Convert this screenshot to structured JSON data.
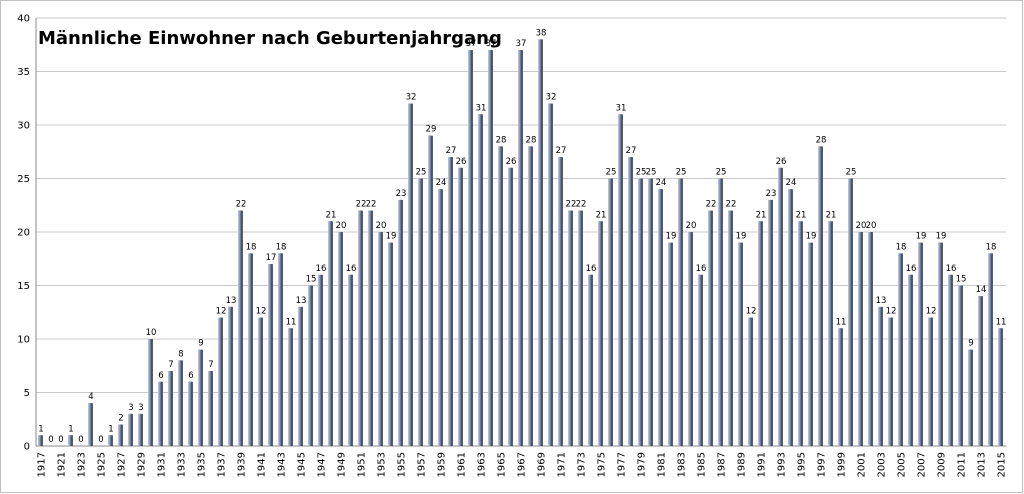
{
  "chart_data": {
    "type": "bar",
    "title": "Männliche Einwohner nach Geburtenjahrgang",
    "categories": [
      "1917",
      null,
      "1921",
      null,
      "1923",
      null,
      "1925",
      null,
      "1927",
      null,
      "1929",
      null,
      "1931",
      null,
      "1933",
      null,
      "1935",
      null,
      "1937",
      null,
      "1939",
      null,
      "1941",
      null,
      "1943",
      null,
      "1945",
      null,
      "1947",
      null,
      "1949",
      null,
      "1951",
      null,
      "1953",
      null,
      "1955",
      null,
      "1957",
      null,
      "1959",
      null,
      "1961",
      null,
      "1963",
      null,
      "1965",
      null,
      "1967",
      null,
      "1969",
      null,
      "1971",
      null,
      "1973",
      null,
      "1975",
      null,
      "1977",
      null,
      "1979",
      null,
      "1981",
      null,
      "1983",
      null,
      "1985",
      null,
      "1987",
      null,
      "1989",
      null,
      "1991",
      null,
      "1993",
      null,
      "1995",
      null,
      "1997",
      null,
      "1999",
      null,
      "2001",
      null,
      "2003",
      null,
      "2005",
      null,
      "2007",
      null,
      "2009",
      null,
      "2011",
      null,
      "2013",
      null,
      "2015"
    ],
    "values": [
      1,
      0,
      0,
      1,
      0,
      4,
      0,
      1,
      2,
      3,
      3,
      10,
      6,
      7,
      8,
      6,
      9,
      7,
      12,
      13,
      22,
      18,
      12,
      17,
      18,
      11,
      13,
      15,
      16,
      21,
      20,
      16,
      22,
      22,
      20,
      19,
      23,
      32,
      25,
      29,
      24,
      27,
      26,
      37,
      31,
      37,
      28,
      26,
      37,
      28,
      38,
      32,
      27,
      22,
      22,
      16,
      21,
      25,
      31,
      27,
      25,
      25,
      24,
      19,
      25,
      20,
      16,
      22,
      25,
      22,
      19,
      12,
      21,
      23,
      26,
      24,
      21,
      19,
      28,
      21,
      11,
      25,
      20,
      20,
      13,
      12,
      18,
      16,
      19,
      12,
      19,
      16,
      15,
      9,
      14,
      18,
      11
    ],
    "color": "#4d5d7e",
    "ylim": [
      0,
      40
    ],
    "yticks": [
      0,
      5,
      10,
      15,
      20,
      25,
      30,
      35,
      40
    ],
    "grid": true
  }
}
